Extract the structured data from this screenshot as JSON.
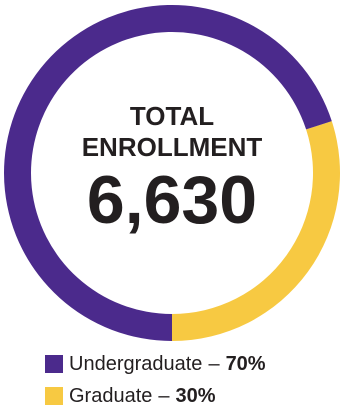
{
  "chart_data": {
    "type": "pie",
    "title_line1": "TOTAL",
    "title_line2": "ENROLLMENT",
    "total": "6,630",
    "slices": [
      {
        "name": "Undergraduate",
        "value": 70,
        "color": "#4b2a8c"
      },
      {
        "name": "Graduate",
        "value": 30,
        "color": "#f7c942"
      }
    ],
    "legend_placement": "bottom-left"
  },
  "legend": {
    "items": [
      {
        "label": "Undergraduate",
        "separator": "–",
        "value": "70%",
        "color": "#4b2a8c"
      },
      {
        "label": "Graduate",
        "separator": "–",
        "value": "30%",
        "color": "#f7c942"
      }
    ]
  }
}
